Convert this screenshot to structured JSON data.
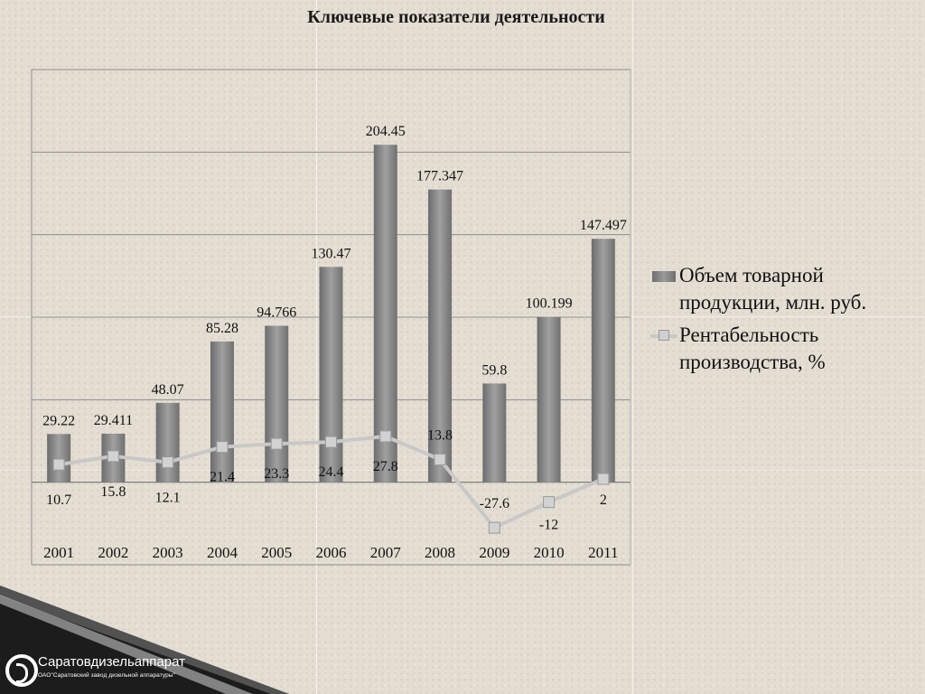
{
  "slide": {
    "logo": {
      "name": "Саратовдизельаппарат",
      "subtitle": "ОАО\"Саратовский завод дизельной аппаратуры\"",
      "icon": "company-logo-icon"
    }
  },
  "chart_data": {
    "type": "bar",
    "title": "Ключевые показатели деятельности",
    "categories": [
      "2001",
      "2002",
      "2003",
      "2004",
      "2005",
      "2006",
      "2007",
      "2008",
      "2009",
      "2010",
      "2011"
    ],
    "series": [
      {
        "name": "Объем товарной продукции, млн. руб.",
        "type": "bar",
        "values": [
          29.22,
          29.411,
          48.07,
          85.28,
          94.766,
          130.47,
          204.45,
          177.347,
          59.8,
          100.199,
          147.497
        ],
        "labels": [
          "29.22",
          "29.411",
          "48.07",
          "85.28",
          "94.766",
          "130.47",
          "204.45",
          "177.347",
          "59.8",
          "100.199",
          "147.497"
        ],
        "color": "#8a8a8a"
      },
      {
        "name": "Рентабельность производства, %",
        "type": "line",
        "values": [
          10.7,
          15.8,
          12.1,
          21.4,
          23.3,
          24.4,
          27.8,
          13.8,
          -27.6,
          -12,
          2
        ],
        "labels": [
          "10.7",
          "15.8",
          "12.1",
          "21.4",
          "23.3",
          "24.4",
          "27.8",
          "13.8",
          "-27.6",
          "-12",
          "2"
        ],
        "color": "#c8c8c8"
      }
    ],
    "ylim": [
      -50,
      250
    ],
    "grid": true,
    "legend": "right"
  }
}
